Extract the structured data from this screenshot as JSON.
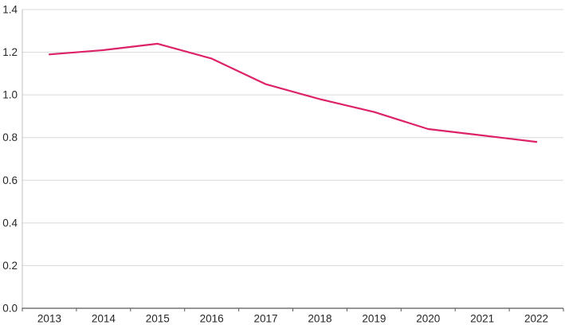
{
  "chart_data": {
    "type": "line",
    "title": "",
    "xlabel": "",
    "ylabel": "",
    "categories": [
      "2013",
      "2014",
      "2015",
      "2016",
      "2017",
      "2018",
      "2019",
      "2020",
      "2021",
      "2022"
    ],
    "series": [
      {
        "name": "value",
        "values": [
          1.19,
          1.21,
          1.24,
          1.17,
          1.05,
          0.98,
          0.92,
          0.84,
          0.81,
          0.78
        ]
      }
    ],
    "ylim": [
      0,
      1.4
    ],
    "ytick_step": 0.2,
    "ytick_labels": [
      "0.0",
      "0.2",
      "0.4",
      "0.6",
      "0.8",
      "1.0",
      "1.2",
      "1.4"
    ],
    "grid": "horizontal-only",
    "legend_position": "none",
    "colors": {
      "line": "#dd2268",
      "gridline": "#d9d9d9",
      "y_axis_line": "#bfbfbf",
      "x_axis_line": "#595959",
      "tick_text": "#262626",
      "background": "#ffffff"
    }
  }
}
